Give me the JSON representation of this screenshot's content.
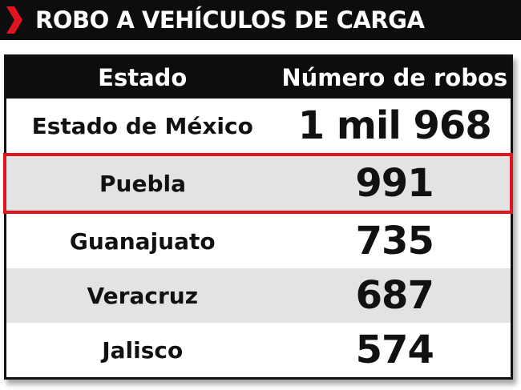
{
  "header": {
    "title": "ROBO A VEHÍCULOS DE CARGA"
  },
  "table": {
    "columns": [
      "Estado",
      "Número de robos"
    ],
    "rows": [
      [
        "Estado de México",
        "1 mil 968"
      ],
      [
        "Puebla",
        "991"
      ],
      [
        "Guanajuato",
        "735"
      ],
      [
        "Veracruz",
        "687"
      ],
      [
        "Jalisco",
        "574"
      ]
    ]
  }
}
